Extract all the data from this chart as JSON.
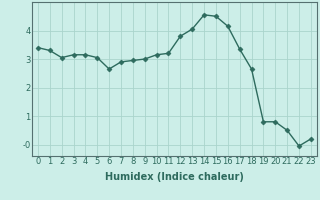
{
  "x": [
    0,
    1,
    2,
    3,
    4,
    5,
    6,
    7,
    8,
    9,
    10,
    11,
    12,
    13,
    14,
    15,
    16,
    17,
    18,
    19,
    20,
    21,
    22,
    23
  ],
  "y": [
    3.4,
    3.3,
    3.05,
    3.15,
    3.15,
    3.05,
    2.65,
    2.9,
    2.95,
    3.0,
    3.15,
    3.2,
    3.8,
    4.05,
    4.55,
    4.5,
    4.15,
    3.35,
    2.65,
    0.8,
    0.8,
    0.5,
    -0.05,
    0.2
  ],
  "line_color": "#2e6b5e",
  "marker": "D",
  "markersize": 2.5,
  "linewidth": 1.0,
  "background_color": "#cceee8",
  "grid_color": "#aad4cc",
  "xlabel": "Humidex (Indice chaleur)",
  "xlabel_fontsize": 7,
  "tick_fontsize": 6,
  "yticks": [
    0,
    1,
    2,
    3,
    4
  ],
  "ytick_labels": [
    "-0",
    "1",
    "2",
    "3",
    "4"
  ],
  "ylim": [
    -0.4,
    5.0
  ],
  "xlim": [
    -0.5,
    23.5
  ],
  "xtick_labels": [
    "0",
    "1",
    "2",
    "3",
    "4",
    "5",
    "6",
    "7",
    "8",
    "9",
    "10",
    "11",
    "12",
    "13",
    "14",
    "15",
    "16",
    "17",
    "18",
    "19",
    "20",
    "21",
    "22",
    "23"
  ]
}
